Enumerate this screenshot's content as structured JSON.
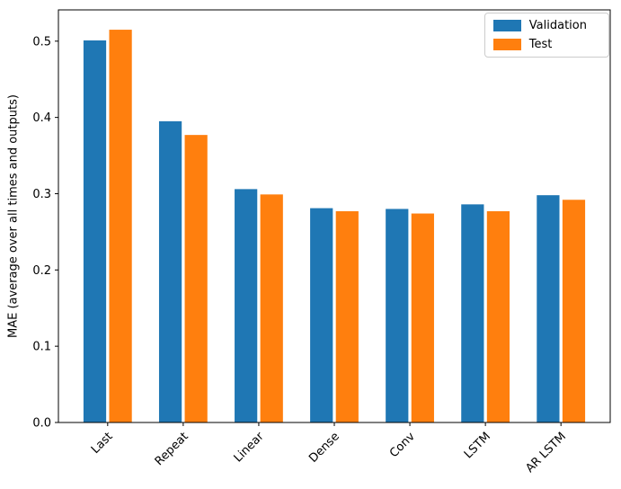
{
  "figure": {
    "background": "#ffffff",
    "axes_edge_color": "#000000",
    "tick_color": "#000000",
    "text_color": "#000000"
  },
  "chart_data": {
    "type": "bar",
    "categories": [
      "Last",
      "Repeat",
      "Linear",
      "Dense",
      "Conv",
      "LSTM",
      "AR LSTM"
    ],
    "series": [
      {
        "name": "Validation",
        "color": "#1f77b4",
        "values": [
          0.501,
          0.395,
          0.306,
          0.281,
          0.28,
          0.286,
          0.298
        ]
      },
      {
        "name": "Test",
        "color": "#ff7f0e",
        "values": [
          0.515,
          0.377,
          0.299,
          0.277,
          0.274,
          0.277,
          0.292
        ]
      }
    ],
    "title": "",
    "xlabel": "",
    "ylabel": "MAE (average over all times and outputs)",
    "ylim": [
      0,
      0.541
    ],
    "xlim": [
      -0.652,
      6.652
    ],
    "yticks": [
      0.0,
      0.1,
      0.2,
      0.3,
      0.4,
      0.5
    ],
    "ytick_labels": [
      "0.0",
      "0.1",
      "0.2",
      "0.3",
      "0.4",
      "0.5"
    ],
    "bar_width": 0.3,
    "bar_offsets": [
      -0.17,
      0.17
    ],
    "xtick_rotation": 45,
    "grid": false,
    "legend_position": "upper right"
  }
}
